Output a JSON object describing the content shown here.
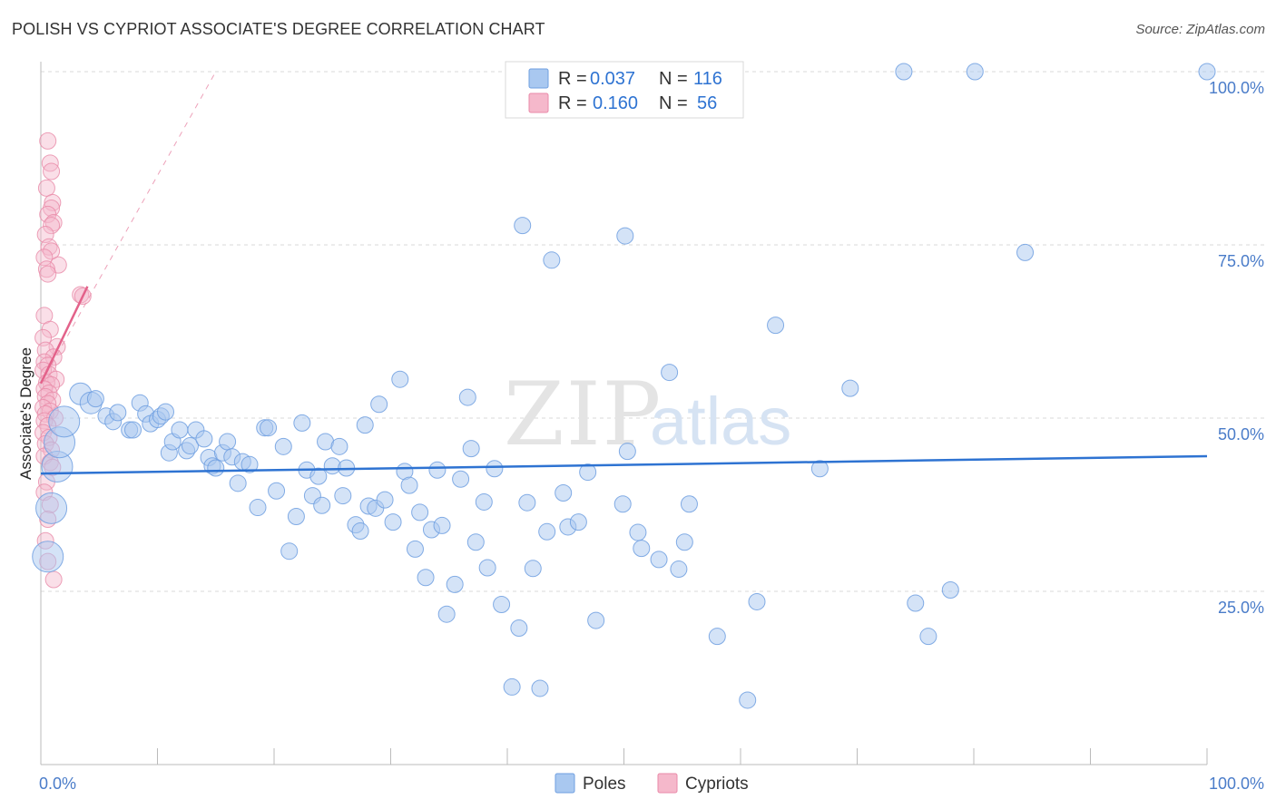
{
  "title": "POLISH VS CYPRIOT ASSOCIATE'S DEGREE CORRELATION CHART",
  "source": "Source: ZipAtlas.com",
  "watermark": {
    "zip": "ZIP",
    "atlas": "atlas"
  },
  "colors": {
    "poles_fill": "#a9c8f0",
    "poles_stroke": "#6f9fe0",
    "poles_line": "#2e73d2",
    "cypriots_fill": "#f5b8cb",
    "cypriots_stroke": "#e98aa8",
    "cypriots_line": "#e3628a",
    "tick_label": "#4a7cc9",
    "grid": "#d9d9d9"
  },
  "legend": {
    "rows": [
      {
        "r_label": "R = ",
        "r_value": "0.037",
        "n_label": "N = ",
        "n_value": "116"
      },
      {
        "r_label": "R = ",
        "r_value": "0.160",
        "n_label": "N = ",
        "n_value": "56"
      }
    ]
  },
  "chart_data": {
    "type": "scatter",
    "title": "POLISH VS CYPRIOT ASSOCIATE'S DEGREE CORRELATION CHART",
    "xlabel": "",
    "ylabel": "Associate's Degree",
    "xlim": [
      0,
      100
    ],
    "ylim": [
      0,
      100
    ],
    "x_tick_labels": [
      "0.0%",
      "100.0%"
    ],
    "y_tick_labels": [
      "25.0%",
      "50.0%",
      "75.0%",
      "100.0%"
    ],
    "y_ticks": [
      25,
      50,
      75,
      100
    ],
    "grid": true,
    "legend_position": "bottom-center",
    "series": [
      {
        "name": "Poles",
        "R": 0.037,
        "N": 116,
        "trend": {
          "x": [
            0,
            100
          ],
          "y": [
            42.0,
            44.5
          ]
        },
        "points": [
          [
            1.4,
            43.0,
            3
          ],
          [
            1.6,
            46.5,
            3
          ],
          [
            2.0,
            49.5,
            3
          ],
          [
            0.9,
            37.0,
            3
          ],
          [
            0.6,
            30.0,
            3
          ],
          [
            3.4,
            53.5,
            2
          ],
          [
            4.3,
            52.2,
            2
          ],
          [
            4.7,
            52.8,
            1
          ],
          [
            5.6,
            50.3,
            1
          ],
          [
            6.2,
            49.5,
            1
          ],
          [
            6.6,
            50.8,
            1
          ],
          [
            7.6,
            48.3,
            1
          ],
          [
            7.9,
            48.3,
            1
          ],
          [
            8.5,
            52.2,
            1
          ],
          [
            9.0,
            50.6,
            1
          ],
          [
            9.4,
            49.2,
            1
          ],
          [
            10.0,
            49.8,
            1
          ],
          [
            10.3,
            50.3,
            1
          ],
          [
            10.7,
            50.9,
            1
          ],
          [
            11.0,
            45.0,
            1
          ],
          [
            11.3,
            46.6,
            1
          ],
          [
            11.9,
            48.3,
            1
          ],
          [
            12.5,
            45.3,
            1
          ],
          [
            12.8,
            46.0,
            1
          ],
          [
            13.3,
            48.3,
            1
          ],
          [
            14.0,
            47.0,
            1
          ],
          [
            14.4,
            44.3,
            1
          ],
          [
            14.7,
            43.1,
            1
          ],
          [
            15.0,
            42.8,
            1
          ],
          [
            15.6,
            45.0,
            1
          ],
          [
            16.0,
            46.6,
            1
          ],
          [
            16.4,
            44.4,
            1
          ],
          [
            16.9,
            40.6,
            1
          ],
          [
            17.3,
            43.7,
            1
          ],
          [
            17.9,
            43.3,
            1
          ],
          [
            18.6,
            37.1,
            1
          ],
          [
            19.2,
            48.6,
            1
          ],
          [
            19.5,
            48.6,
            1
          ],
          [
            20.2,
            39.5,
            1
          ],
          [
            20.8,
            45.9,
            1
          ],
          [
            21.3,
            30.8,
            1
          ],
          [
            21.9,
            35.8,
            1
          ],
          [
            22.4,
            49.3,
            1
          ],
          [
            22.8,
            42.5,
            1
          ],
          [
            23.3,
            38.8,
            1
          ],
          [
            23.8,
            41.6,
            1
          ],
          [
            24.1,
            37.4,
            1
          ],
          [
            24.4,
            46.6,
            1
          ],
          [
            25.0,
            43.1,
            1
          ],
          [
            25.6,
            45.9,
            1
          ],
          [
            25.9,
            38.8,
            1
          ],
          [
            26.2,
            42.8,
            1
          ],
          [
            27.0,
            34.6,
            1
          ],
          [
            27.4,
            33.7,
            1
          ],
          [
            27.8,
            49.0,
            1
          ],
          [
            28.1,
            37.3,
            1
          ],
          [
            28.7,
            37.0,
            1
          ],
          [
            29.0,
            52.0,
            1
          ],
          [
            29.5,
            38.2,
            1
          ],
          [
            30.2,
            35.0,
            1
          ],
          [
            30.8,
            55.6,
            1
          ],
          [
            31.2,
            42.3,
            1
          ],
          [
            31.6,
            40.3,
            1
          ],
          [
            32.1,
            31.1,
            1
          ],
          [
            32.5,
            36.4,
            1
          ],
          [
            33.0,
            27.0,
            1
          ],
          [
            33.5,
            33.9,
            1
          ],
          [
            34.0,
            42.5,
            1
          ],
          [
            34.4,
            34.5,
            1
          ],
          [
            34.8,
            21.7,
            1
          ],
          [
            35.5,
            26.0,
            1
          ],
          [
            36.0,
            41.2,
            1
          ],
          [
            36.6,
            53.0,
            1
          ],
          [
            36.9,
            45.6,
            1
          ],
          [
            37.3,
            32.1,
            1
          ],
          [
            38.0,
            37.9,
            1
          ],
          [
            38.3,
            28.4,
            1
          ],
          [
            38.9,
            42.7,
            1
          ],
          [
            39.5,
            23.1,
            1
          ],
          [
            40.4,
            11.2,
            1
          ],
          [
            41.0,
            19.7,
            1
          ],
          [
            41.3,
            77.8,
            1
          ],
          [
            41.7,
            37.8,
            1
          ],
          [
            42.2,
            28.3,
            1
          ],
          [
            42.8,
            11.0,
            1
          ],
          [
            43.4,
            33.6,
            1
          ],
          [
            43.8,
            72.8,
            1
          ],
          [
            44.8,
            39.2,
            1
          ],
          [
            45.2,
            34.3,
            1
          ],
          [
            46.1,
            35.0,
            1
          ],
          [
            46.9,
            42.2,
            1
          ],
          [
            47.6,
            20.8,
            1
          ],
          [
            49.9,
            37.6,
            1
          ],
          [
            50.1,
            76.3,
            1
          ],
          [
            50.3,
            45.2,
            1
          ],
          [
            51.2,
            33.5,
            1
          ],
          [
            51.5,
            31.2,
            1
          ],
          [
            53.0,
            29.6,
            1
          ],
          [
            53.9,
            56.6,
            1
          ],
          [
            54.7,
            28.2,
            1
          ],
          [
            55.2,
            32.1,
            1
          ],
          [
            55.6,
            37.6,
            1
          ],
          [
            58.0,
            18.5,
            1
          ],
          [
            60.6,
            9.3,
            1
          ],
          [
            61.4,
            23.5,
            1
          ],
          [
            63.0,
            63.4,
            1
          ],
          [
            66.8,
            42.7,
            1
          ],
          [
            69.4,
            54.3,
            1
          ],
          [
            74.0,
            100.0,
            1
          ],
          [
            75.0,
            23.3,
            1
          ],
          [
            76.1,
            18.5,
            1
          ],
          [
            78.0,
            25.2,
            1
          ],
          [
            80.1,
            100.0,
            1
          ],
          [
            84.4,
            73.9,
            1
          ],
          [
            100.0,
            100.0,
            1
          ]
        ]
      },
      {
        "name": "Cypriots",
        "R": 0.16,
        "N": 56,
        "trend": {
          "x": [
            0,
            4.0
          ],
          "y": [
            55.0,
            69.0
          ]
        },
        "trend_ext": {
          "x": [
            0,
            15.0
          ],
          "y": [
            55.0,
            100.0
          ]
        },
        "points": [
          [
            0.6,
            90.0,
            1
          ],
          [
            0.8,
            86.8,
            1
          ],
          [
            0.9,
            85.6,
            1
          ],
          [
            0.5,
            83.2,
            1
          ],
          [
            1.0,
            81.1,
            1
          ],
          [
            0.9,
            80.3,
            1
          ],
          [
            0.6,
            79.4,
            1
          ],
          [
            1.1,
            78.2,
            1
          ],
          [
            0.9,
            77.8,
            1
          ],
          [
            0.4,
            76.5,
            1
          ],
          [
            0.7,
            74.7,
            1
          ],
          [
            0.9,
            74.1,
            1
          ],
          [
            0.3,
            73.2,
            1
          ],
          [
            1.5,
            72.1,
            1
          ],
          [
            0.5,
            71.5,
            1
          ],
          [
            0.6,
            70.8,
            1
          ],
          [
            3.4,
            67.8,
            1
          ],
          [
            3.6,
            67.6,
            1
          ],
          [
            0.3,
            64.8,
            1
          ],
          [
            0.8,
            62.8,
            1
          ],
          [
            0.2,
            61.6,
            1
          ],
          [
            1.4,
            60.3,
            1
          ],
          [
            0.4,
            59.8,
            1
          ],
          [
            1.1,
            58.8,
            1
          ],
          [
            0.3,
            58.1,
            1
          ],
          [
            0.6,
            57.6,
            1
          ],
          [
            0.2,
            56.9,
            1
          ],
          [
            0.7,
            56.3,
            1
          ],
          [
            1.3,
            55.6,
            1
          ],
          [
            0.5,
            55.1,
            1
          ],
          [
            0.9,
            54.8,
            1
          ],
          [
            0.3,
            54.2,
            1
          ],
          [
            0.7,
            53.6,
            1
          ],
          [
            0.4,
            53.1,
            1
          ],
          [
            1.0,
            52.6,
            1
          ],
          [
            0.6,
            52.1,
            1
          ],
          [
            0.2,
            51.5,
            1
          ],
          [
            0.8,
            51.0,
            1
          ],
          [
            0.4,
            50.6,
            1
          ],
          [
            1.2,
            50.0,
            1
          ],
          [
            0.3,
            49.6,
            1
          ],
          [
            0.6,
            48.9,
            1
          ],
          [
            0.2,
            47.9,
            1
          ],
          [
            0.7,
            47.2,
            1
          ],
          [
            0.4,
            46.3,
            1
          ],
          [
            0.9,
            45.4,
            1
          ],
          [
            0.3,
            44.5,
            1
          ],
          [
            0.8,
            43.6,
            1
          ],
          [
            1.0,
            42.9,
            1
          ],
          [
            0.5,
            40.8,
            1
          ],
          [
            0.3,
            39.3,
            1
          ],
          [
            0.8,
            37.5,
            1
          ],
          [
            0.6,
            35.4,
            1
          ],
          [
            0.4,
            32.3,
            1
          ],
          [
            0.6,
            29.3,
            1
          ],
          [
            1.1,
            26.7,
            1
          ]
        ]
      }
    ]
  }
}
